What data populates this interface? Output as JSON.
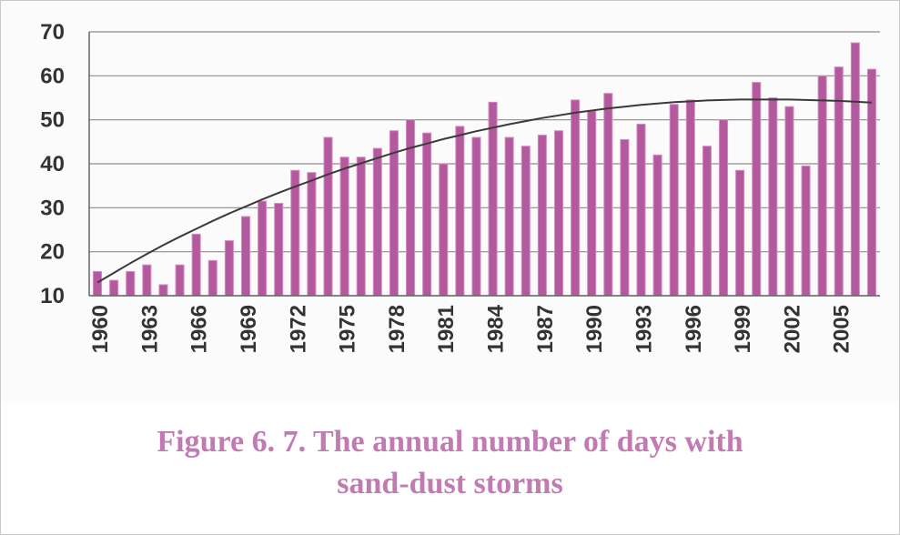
{
  "caption": {
    "line1": "Figure 6. 7. The annual number of days with",
    "line2": "sand-dust storms"
  },
  "colors": {
    "bar": "#b35a9e",
    "bar_light": "#d58ac2",
    "trend": "#3a3a3a",
    "grid": "#8c8c8c",
    "caption": "#c27bb2"
  },
  "chart_data": {
    "type": "bar",
    "title": "",
    "xlabel": "",
    "ylabel": "",
    "ylim": [
      10,
      70
    ],
    "yticks": [
      10,
      20,
      30,
      40,
      50,
      60,
      70
    ],
    "grid": true,
    "legend": "none",
    "x_tick_labels": [
      "1960",
      "1963",
      "1966",
      "1969",
      "1972",
      "1975",
      "1978",
      "1981",
      "1984",
      "1987",
      "1990",
      "1993",
      "1996",
      "1999",
      "2002",
      "2005"
    ],
    "categories": [
      "1960",
      "1961",
      "1962",
      "1963",
      "1964",
      "1965",
      "1966",
      "1967",
      "1968",
      "1969",
      "1970",
      "1971",
      "1972",
      "1973",
      "1974",
      "1975",
      "1976",
      "1977",
      "1978",
      "1979",
      "1980",
      "1981",
      "1982",
      "1983",
      "1984",
      "1985",
      "1986",
      "1987",
      "1988",
      "1989",
      "1990",
      "1991",
      "1992",
      "1993",
      "1994",
      "1995",
      "1996",
      "1997",
      "1998",
      "1999",
      "2000",
      "2001",
      "2002",
      "2003",
      "2004",
      "2005",
      "2006",
      "2007"
    ],
    "series": [
      {
        "type": "bar",
        "values": [
          15.5,
          13.5,
          15.5,
          17,
          12.5,
          17,
          24,
          18,
          22.5,
          28,
          31.5,
          31,
          38.5,
          38,
          46,
          41.5,
          41.5,
          43.5,
          47.5,
          50,
          47,
          40,
          48.5,
          46,
          54,
          46,
          44,
          46.5,
          47.5,
          54.5,
          52,
          56,
          45.5,
          49,
          42,
          53.5,
          54.5,
          44,
          50,
          38.5,
          58.5,
          55,
          53,
          39.5,
          60,
          62,
          67.5,
          61.5
        ]
      },
      {
        "type": "line",
        "trend": "polynomial",
        "values": [
          13,
          15.2,
          17.4,
          19.5,
          21.5,
          23.4,
          25.2,
          27,
          28.7,
          30.3,
          31.9,
          33.4,
          34.8,
          36.2,
          37.6,
          38.9,
          40.1,
          41.3,
          42.5,
          43.6,
          44.6,
          45.6,
          46.5,
          47.4,
          48.2,
          49,
          49.7,
          50.4,
          51,
          51.6,
          52.1,
          52.6,
          53,
          53.4,
          53.7,
          54,
          54.2,
          54.4,
          54.5,
          54.6,
          54.6,
          54.6,
          54.6,
          54.5,
          54.4,
          54.3,
          54.1,
          53.9
        ]
      }
    ]
  }
}
